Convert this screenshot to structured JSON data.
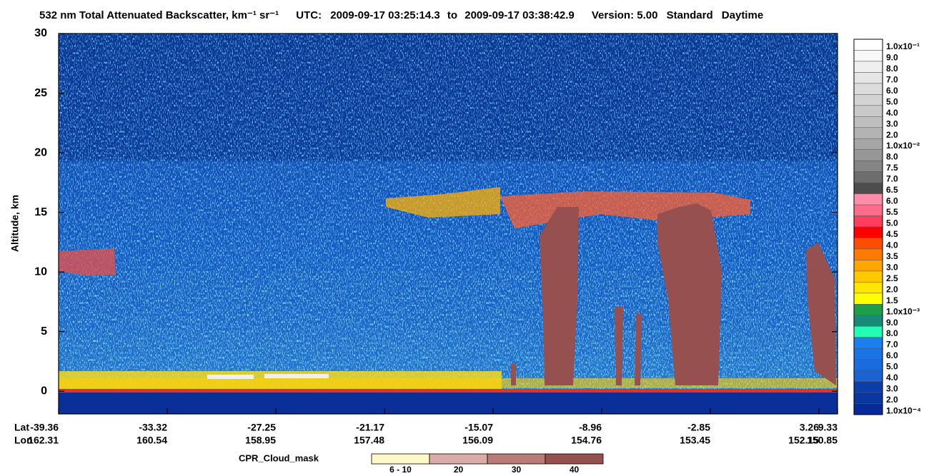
{
  "chart_data": {
    "type": "curtain",
    "title": "532 nm Total Attenuated Backscatter, km⁻¹ sr⁻¹",
    "utc_label": "UTC:",
    "start_time": "2009-09-17 03:25:14.3",
    "to_label": "to",
    "end_time": "2009-09-17 03:38:42.9",
    "version": "Version: 5.00",
    "product": "Standard",
    "daynight": "Daytime",
    "ylabel": "Altitude, km",
    "ylim": [
      -1.9,
      30
    ],
    "yticks": [
      0,
      5,
      10,
      15,
      20,
      25,
      30
    ],
    "lat_label": "Lat",
    "lon_label": "Lon",
    "lat_ticks": [
      -39.36,
      -33.32,
      -27.25,
      -21.17,
      -15.07,
      -8.96,
      -2.85,
      3.26,
      9.33
    ],
    "lon_ticks": [
      162.31,
      160.54,
      158.95,
      157.48,
      156.09,
      154.76,
      153.45,
      152.15,
      150.85
    ],
    "colorbar": {
      "labels": [
        "1.0x10⁻¹",
        "9.0",
        "8.0",
        "7.0",
        "6.0",
        "5.0",
        "4.0",
        "3.0",
        "2.0",
        "1.0x10⁻²",
        "8.0",
        "7.5",
        "7.0",
        "6.5",
        "6.0",
        "5.5",
        "5.0",
        "4.5",
        "4.0",
        "3.5",
        "3.0",
        "2.5",
        "2.0",
        "1.5",
        "1.0x10⁻³",
        "9.0",
        "8.0",
        "7.0",
        "6.0",
        "5.0",
        "4.0",
        "3.0",
        "2.0",
        "1.0x10⁻⁴"
      ],
      "colors": [
        "#ffffff",
        "#f8f8f8",
        "#efefef",
        "#e6e6e6",
        "#dcdcdc",
        "#d3d3d3",
        "#c9c9c9",
        "#bfbfbf",
        "#b3b3b3",
        "#a6a6a6",
        "#979797",
        "#858585",
        "#6e6e6e",
        "#4d4d4d",
        "#ff8cab",
        "#ff6b8a",
        "#ff3d5e",
        "#ff0000",
        "#ff4d00",
        "#ff7b00",
        "#ffa600",
        "#ffc800",
        "#ffe600",
        "#ffff00",
        "#1f9e4a",
        "#188a78",
        "#22ffb0",
        "#1a7ff0",
        "#1a74e6",
        "#1a6cdc",
        "#1a63d2",
        "#0d3ea8",
        "#0a36a0",
        "#082a98"
      ]
    },
    "cpr_legend": {
      "title": "CPR_Cloud_mask",
      "labels": [
        "6 - 10",
        "20",
        "30",
        "40"
      ],
      "colors": [
        "#fff8c8",
        "#d9aca8",
        "#b97a78",
        "#965050"
      ]
    }
  }
}
